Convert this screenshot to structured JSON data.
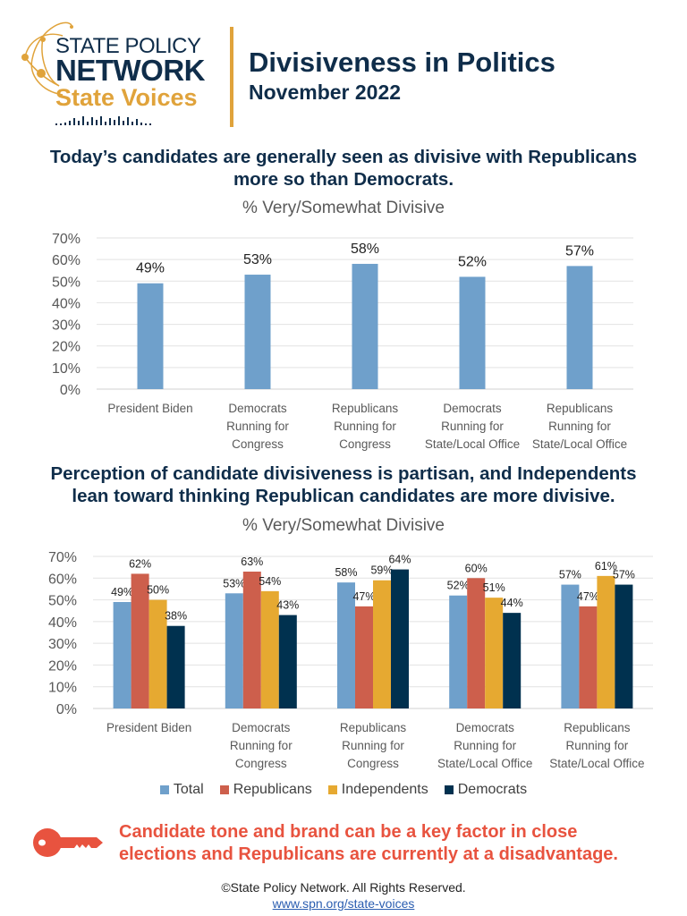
{
  "logo": {
    "line1": "STATE POLICY",
    "line2": "NETWORK",
    "line3": "State Voices"
  },
  "header": {
    "title": "Divisiveness in Politics",
    "subtitle": "November 2022"
  },
  "section1": {
    "headline_line1": "Today’s candidates are generally seen as divisive with Republicans",
    "headline_line2": "more so than Democrats."
  },
  "section2": {
    "headline_line1": "Perception of candidate divisiveness is partisan, and Independents",
    "headline_line2": "lean toward thinking Republican candidates are more divisive."
  },
  "callout": {
    "icon": "key-icon",
    "line1": "Candidate tone and brand can be a key factor in close",
    "line2": "elections and Republicans are currently at a disadvantage."
  },
  "footer": {
    "copyright": "©State Policy Network. All Rights Reserved.",
    "link": "www.spn.org/state-voices"
  },
  "colors": {
    "navy": "#0f2d4a",
    "gold": "#e0a33b",
    "total": "#6fa0cb",
    "republicans": "#cd5f4c",
    "independents": "#e6a931",
    "democrats": "#00314f",
    "callout": "#e8533f"
  },
  "chart_data": [
    {
      "type": "bar",
      "title": "% Very/Somewhat Divisive",
      "xlabel": "",
      "ylabel": "",
      "ylim": [
        0,
        70
      ],
      "yticks": [
        "0%",
        "10%",
        "20%",
        "30%",
        "40%",
        "50%",
        "60%",
        "70%"
      ],
      "grid": true,
      "categories": [
        [
          "President Biden"
        ],
        [
          "Democrats",
          "Running for",
          "Congress"
        ],
        [
          "Republicans",
          "Running for",
          "Congress"
        ],
        [
          "Democrats",
          "Running for",
          "State/Local Office"
        ],
        [
          "Republicans",
          "Running for",
          "State/Local Office"
        ]
      ],
      "values": [
        49,
        53,
        58,
        52,
        57
      ],
      "labels": [
        "49%",
        "53%",
        "58%",
        "52%",
        "57%"
      ],
      "color": "#6fa0cb"
    },
    {
      "type": "bar",
      "title": "% Very/Somewhat Divisive",
      "xlabel": "",
      "ylabel": "",
      "ylim": [
        0,
        70
      ],
      "yticks": [
        "0%",
        "10%",
        "20%",
        "30%",
        "40%",
        "50%",
        "60%",
        "70%"
      ],
      "grid": true,
      "legend": "bottom",
      "categories": [
        [
          "President Biden"
        ],
        [
          "Democrats",
          "Running for",
          "Congress"
        ],
        [
          "Republicans",
          "Running for",
          "Congress"
        ],
        [
          "Democrats",
          "Running for",
          "State/Local Office"
        ],
        [
          "Republicans",
          "Running for",
          "State/Local Office"
        ]
      ],
      "series": [
        {
          "name": "Total",
          "color": "#6fa0cb",
          "values": [
            49,
            53,
            58,
            52,
            57
          ]
        },
        {
          "name": "Republicans",
          "color": "#cd5f4c",
          "values": [
            62,
            63,
            47,
            60,
            47
          ]
        },
        {
          "name": "Independents",
          "color": "#e6a931",
          "values": [
            50,
            54,
            59,
            51,
            61
          ]
        },
        {
          "name": "Democrats",
          "color": "#00314f",
          "values": [
            38,
            43,
            64,
            44,
            57
          ]
        }
      ]
    }
  ]
}
